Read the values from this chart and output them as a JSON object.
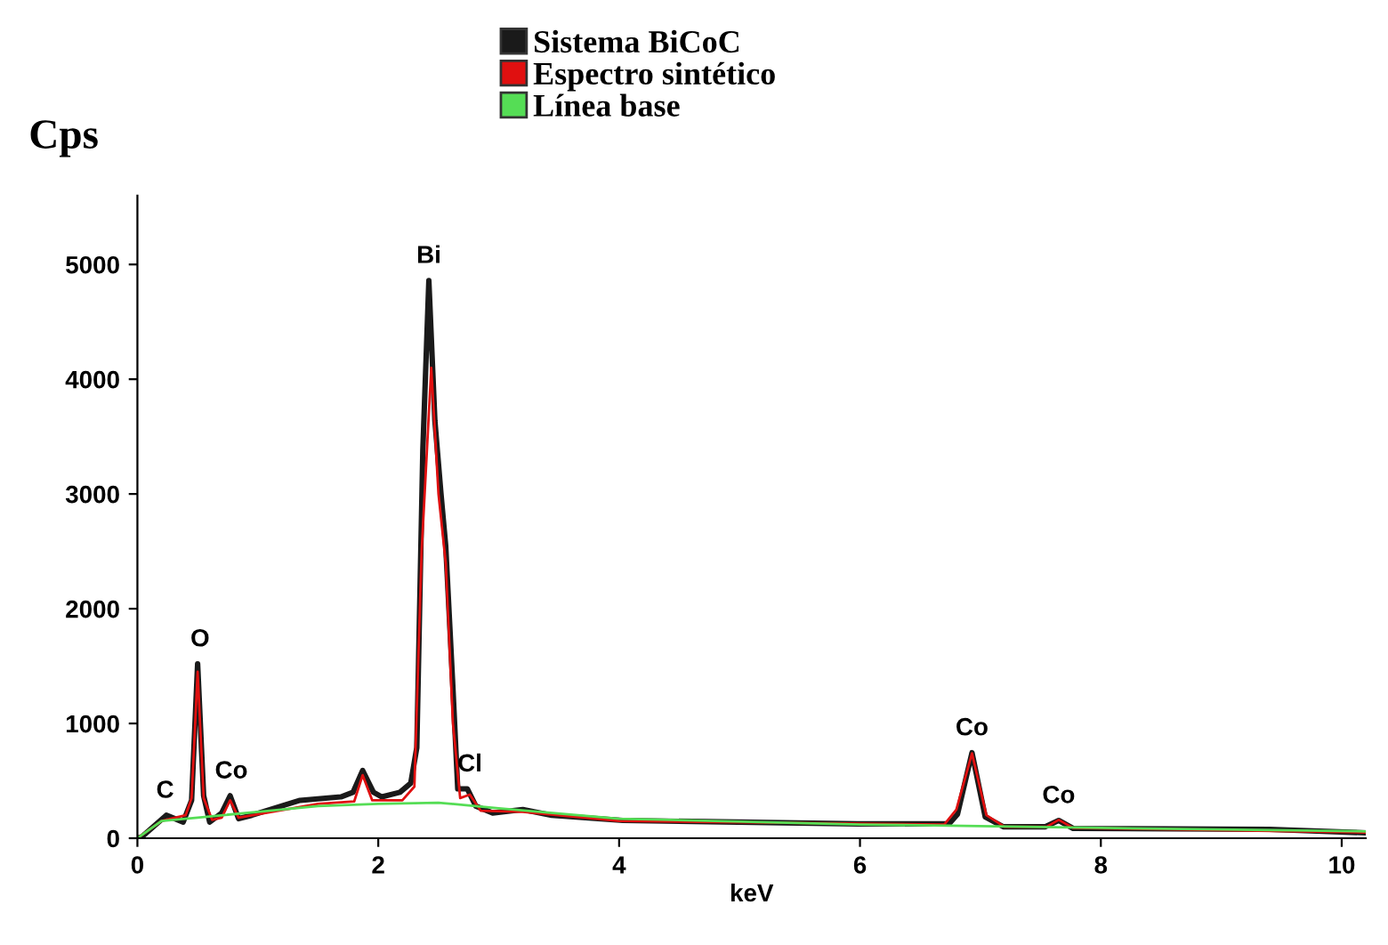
{
  "chart_data": {
    "type": "line",
    "xlabel": "keV",
    "ylabel": "Cps",
    "xlim": [
      0,
      10.2
    ],
    "ylim": [
      0,
      5600
    ],
    "xticks": [
      0,
      2,
      4,
      6,
      8,
      10
    ],
    "yticks": [
      0,
      1000,
      2000,
      3000,
      4000,
      5000
    ],
    "grid": false,
    "legend": "top",
    "marker": "none",
    "line_style": "solid",
    "series": [
      {
        "name": "Sistema BiCoC",
        "color": "#1a1a1a",
        "x": [
          0,
          0.04,
          0.24,
          0.38,
          0.45,
          0.5,
          0.55,
          0.6,
          0.7,
          0.77,
          0.84,
          0.95,
          1.35,
          1.69,
          1.79,
          1.87,
          1.96,
          2.03,
          2.18,
          2.27,
          2.32,
          2.37,
          2.42,
          2.47,
          2.52,
          2.56,
          2.62,
          2.66,
          2.74,
          2.81,
          2.95,
          3.2,
          3.44,
          4.03,
          5.98,
          6.74,
          6.81,
          6.93,
          7.04,
          7.19,
          7.54,
          7.65,
          7.77,
          9.4,
          10.2
        ],
        "values": [
          0,
          15,
          200,
          140,
          330,
          1520,
          370,
          140,
          220,
          370,
          170,
          200,
          330,
          360,
          400,
          590,
          400,
          360,
          400,
          480,
          790,
          3380,
          4860,
          3640,
          3010,
          2550,
          1310,
          430,
          430,
          280,
          220,
          250,
          200,
          155,
          125,
          125,
          210,
          745,
          185,
          100,
          100,
          155,
          85,
          78,
          47
        ]
      },
      {
        "name": "Espectro sintético",
        "color": "#e01010",
        "x": [
          0,
          0.2,
          0.4,
          0.45,
          0.5,
          0.55,
          0.62,
          0.7,
          0.77,
          0.84,
          1.5,
          1.8,
          1.87,
          1.95,
          2.2,
          2.3,
          2.36,
          2.44,
          2.5,
          2.56,
          2.62,
          2.68,
          2.76,
          2.85,
          3.2,
          4,
          6.7,
          6.8,
          6.93,
          7.05,
          7.2,
          7.55,
          7.65,
          7.77,
          10.2
        ],
        "values": [
          0,
          150,
          200,
          350,
          1450,
          350,
          160,
          180,
          330,
          180,
          300,
          320,
          550,
          330,
          330,
          450,
          2500,
          4100,
          3000,
          2400,
          1000,
          350,
          380,
          240,
          230,
          150,
          120,
          250,
          740,
          200,
          100,
          100,
          160,
          90,
          50
        ]
      },
      {
        "name": "Línea base",
        "color": "#55dd55",
        "x": [
          0,
          0.2,
          0.5,
          1.0,
          1.5,
          2.0,
          2.5,
          3.0,
          4,
          6,
          8,
          10.2
        ],
        "values": [
          0,
          150,
          180,
          230,
          280,
          300,
          310,
          260,
          170,
          120,
          90,
          60
        ]
      }
    ],
    "annotations": [
      {
        "text": "C",
        "x": 0.23,
        "y": 200
      },
      {
        "text": "O",
        "x": 0.52,
        "y": 1520
      },
      {
        "text": "Co",
        "x": 0.78,
        "y": 370
      },
      {
        "text": "Bi",
        "x": 2.42,
        "y": 4860
      },
      {
        "text": "Cl",
        "x": 2.76,
        "y": 430
      },
      {
        "text": "Co",
        "x": 6.93,
        "y": 745
      },
      {
        "text": "Co",
        "x": 7.65,
        "y": 155
      }
    ]
  }
}
